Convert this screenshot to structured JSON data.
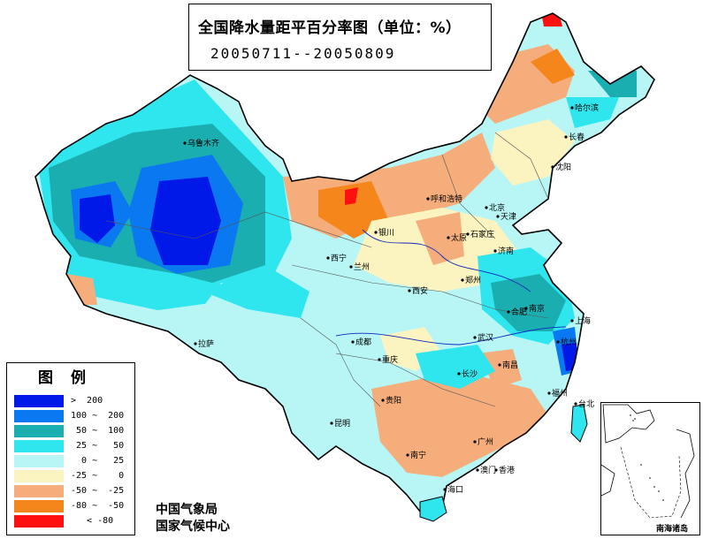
{
  "top_mark": "",
  "title": {
    "main": "全国降水量距平百分率图（单位：%）",
    "date_range": "20050711--20050809"
  },
  "legend": {
    "title": "图例",
    "items": [
      {
        "label": ">  200",
        "color": "#0018e8"
      },
      {
        "label": "100 ~  200",
        "color": "#0a78f0"
      },
      {
        "label": " 50 ~  100",
        "color": "#1aaeb0"
      },
      {
        "label": " 25 ~   50",
        "color": "#30e6ee"
      },
      {
        "label": "  0 ~   25",
        "color": "#b8f6f6"
      },
      {
        "label": "-25 ~    0",
        "color": "#fbf3c0"
      },
      {
        "label": "-50 ~  -25",
        "color": "#f5ad7c"
      },
      {
        "label": "-80 ~  -50",
        "color": "#f5861c"
      },
      {
        "label": "   < -80",
        "color": "#ff1010"
      }
    ]
  },
  "credits": {
    "line1": "中国气象局",
    "line2": "国家气候中心"
  },
  "inset": {
    "label": "南海诸岛"
  },
  "cities": [
    {
      "name": "乌鲁木齐"
    },
    {
      "name": "哈尔滨"
    },
    {
      "name": "长春"
    },
    {
      "name": "沈阳"
    },
    {
      "name": "呼和浩特"
    },
    {
      "name": "北京"
    },
    {
      "name": "天津"
    },
    {
      "name": "银川"
    },
    {
      "name": "太原"
    },
    {
      "name": "石家庄"
    },
    {
      "name": "济南"
    },
    {
      "name": "西宁"
    },
    {
      "name": "兰州"
    },
    {
      "name": "郑州"
    },
    {
      "name": "西安"
    },
    {
      "name": "合肥"
    },
    {
      "name": "南京"
    },
    {
      "name": "上海"
    },
    {
      "name": "拉萨"
    },
    {
      "name": "成都"
    },
    {
      "name": "武汉"
    },
    {
      "name": "杭州"
    },
    {
      "name": "重庆"
    },
    {
      "name": "长沙"
    },
    {
      "name": "南昌"
    },
    {
      "name": "福州"
    },
    {
      "name": "贵阳"
    },
    {
      "name": "昆明"
    },
    {
      "name": "南宁"
    },
    {
      "name": "广州"
    },
    {
      "name": "台北"
    },
    {
      "name": "香港"
    },
    {
      "name": "澳门"
    },
    {
      "name": "海口"
    }
  ]
}
